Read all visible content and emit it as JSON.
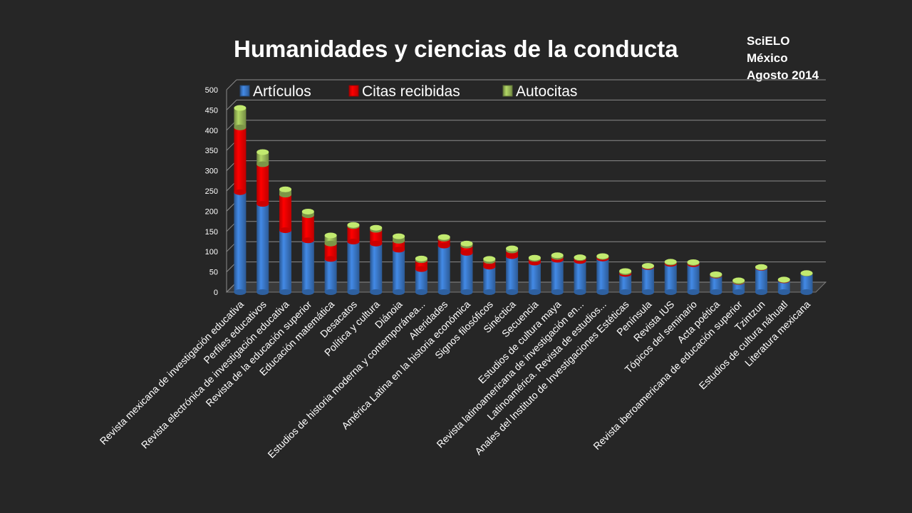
{
  "slide": {
    "title": "Humanidades y ciencias de la conducta",
    "source_lines": [
      "SciELO",
      "México",
      "Agosto 2014"
    ]
  },
  "colors": {
    "background": "#262626",
    "articulos": "#3a78c8",
    "citas": "#ff0000",
    "autocitas": "#9bbb59",
    "gridline": "#8c8c8c"
  },
  "chart_data": {
    "type": "bar",
    "stacked": true,
    "three_d": true,
    "title": "Humanidades y ciencias de la conducta",
    "ylim": [
      0,
      500
    ],
    "yticks": [
      0,
      50,
      100,
      150,
      200,
      250,
      300,
      350,
      400,
      450,
      500
    ],
    "grid": true,
    "legend_position": "top",
    "categories": [
      "Revista mexicana de investigación educativa",
      "Perfiles educativos",
      "Revista electrónica de investigación educativa",
      "Revista de la educación superior",
      "Educación matemática",
      "Desacatos",
      "Política y cultura",
      "Diánoia",
      "Estudios de historia moderna y contemporánea...",
      "Alteridades",
      "América Latina en la historia económica",
      "Signos filosóficos",
      "Sinéctica",
      "Secuencia",
      "Estudios de cultura maya",
      "Revista latinoamericana de investigación en...",
      "Latinoamérica. Revista de estudios...",
      "Anales del Instituto de Investigaciones Estéticas",
      "Península",
      "Revista IUS",
      "Tópicos del seminario",
      "Acta poética",
      "Revista iberoamericana de educación superior",
      "Tzintzun",
      "Estudios de cultura náhuatl",
      "Literatura mexicana"
    ],
    "series": [
      {
        "name": "Artículos",
        "values": [
          247,
          218,
          153,
          128,
          82,
          125,
          120,
          105,
          57,
          115,
          97,
          63,
          89,
          73,
          80,
          77,
          83,
          45,
          62,
          70,
          69,
          41,
          25,
          60,
          29,
          46
        ]
      },
      {
        "name": "Citas recibidas",
        "values": [
          160,
          98,
          88,
          62,
          38,
          38,
          34,
          22,
          22,
          17,
          18,
          14,
          14,
          9,
          7,
          7,
          4,
          4,
          2,
          3,
          3,
          1,
          1,
          1,
          1,
          0
        ]
      },
      {
        "name": "Autocitas",
        "values": [
          48,
          30,
          13,
          9,
          20,
          3,
          5,
          11,
          4,
          4,
          5,
          5,
          5,
          3,
          4,
          2,
          2,
          3,
          1,
          2,
          2,
          2,
          3,
          1,
          1,
          1
        ]
      }
    ]
  }
}
